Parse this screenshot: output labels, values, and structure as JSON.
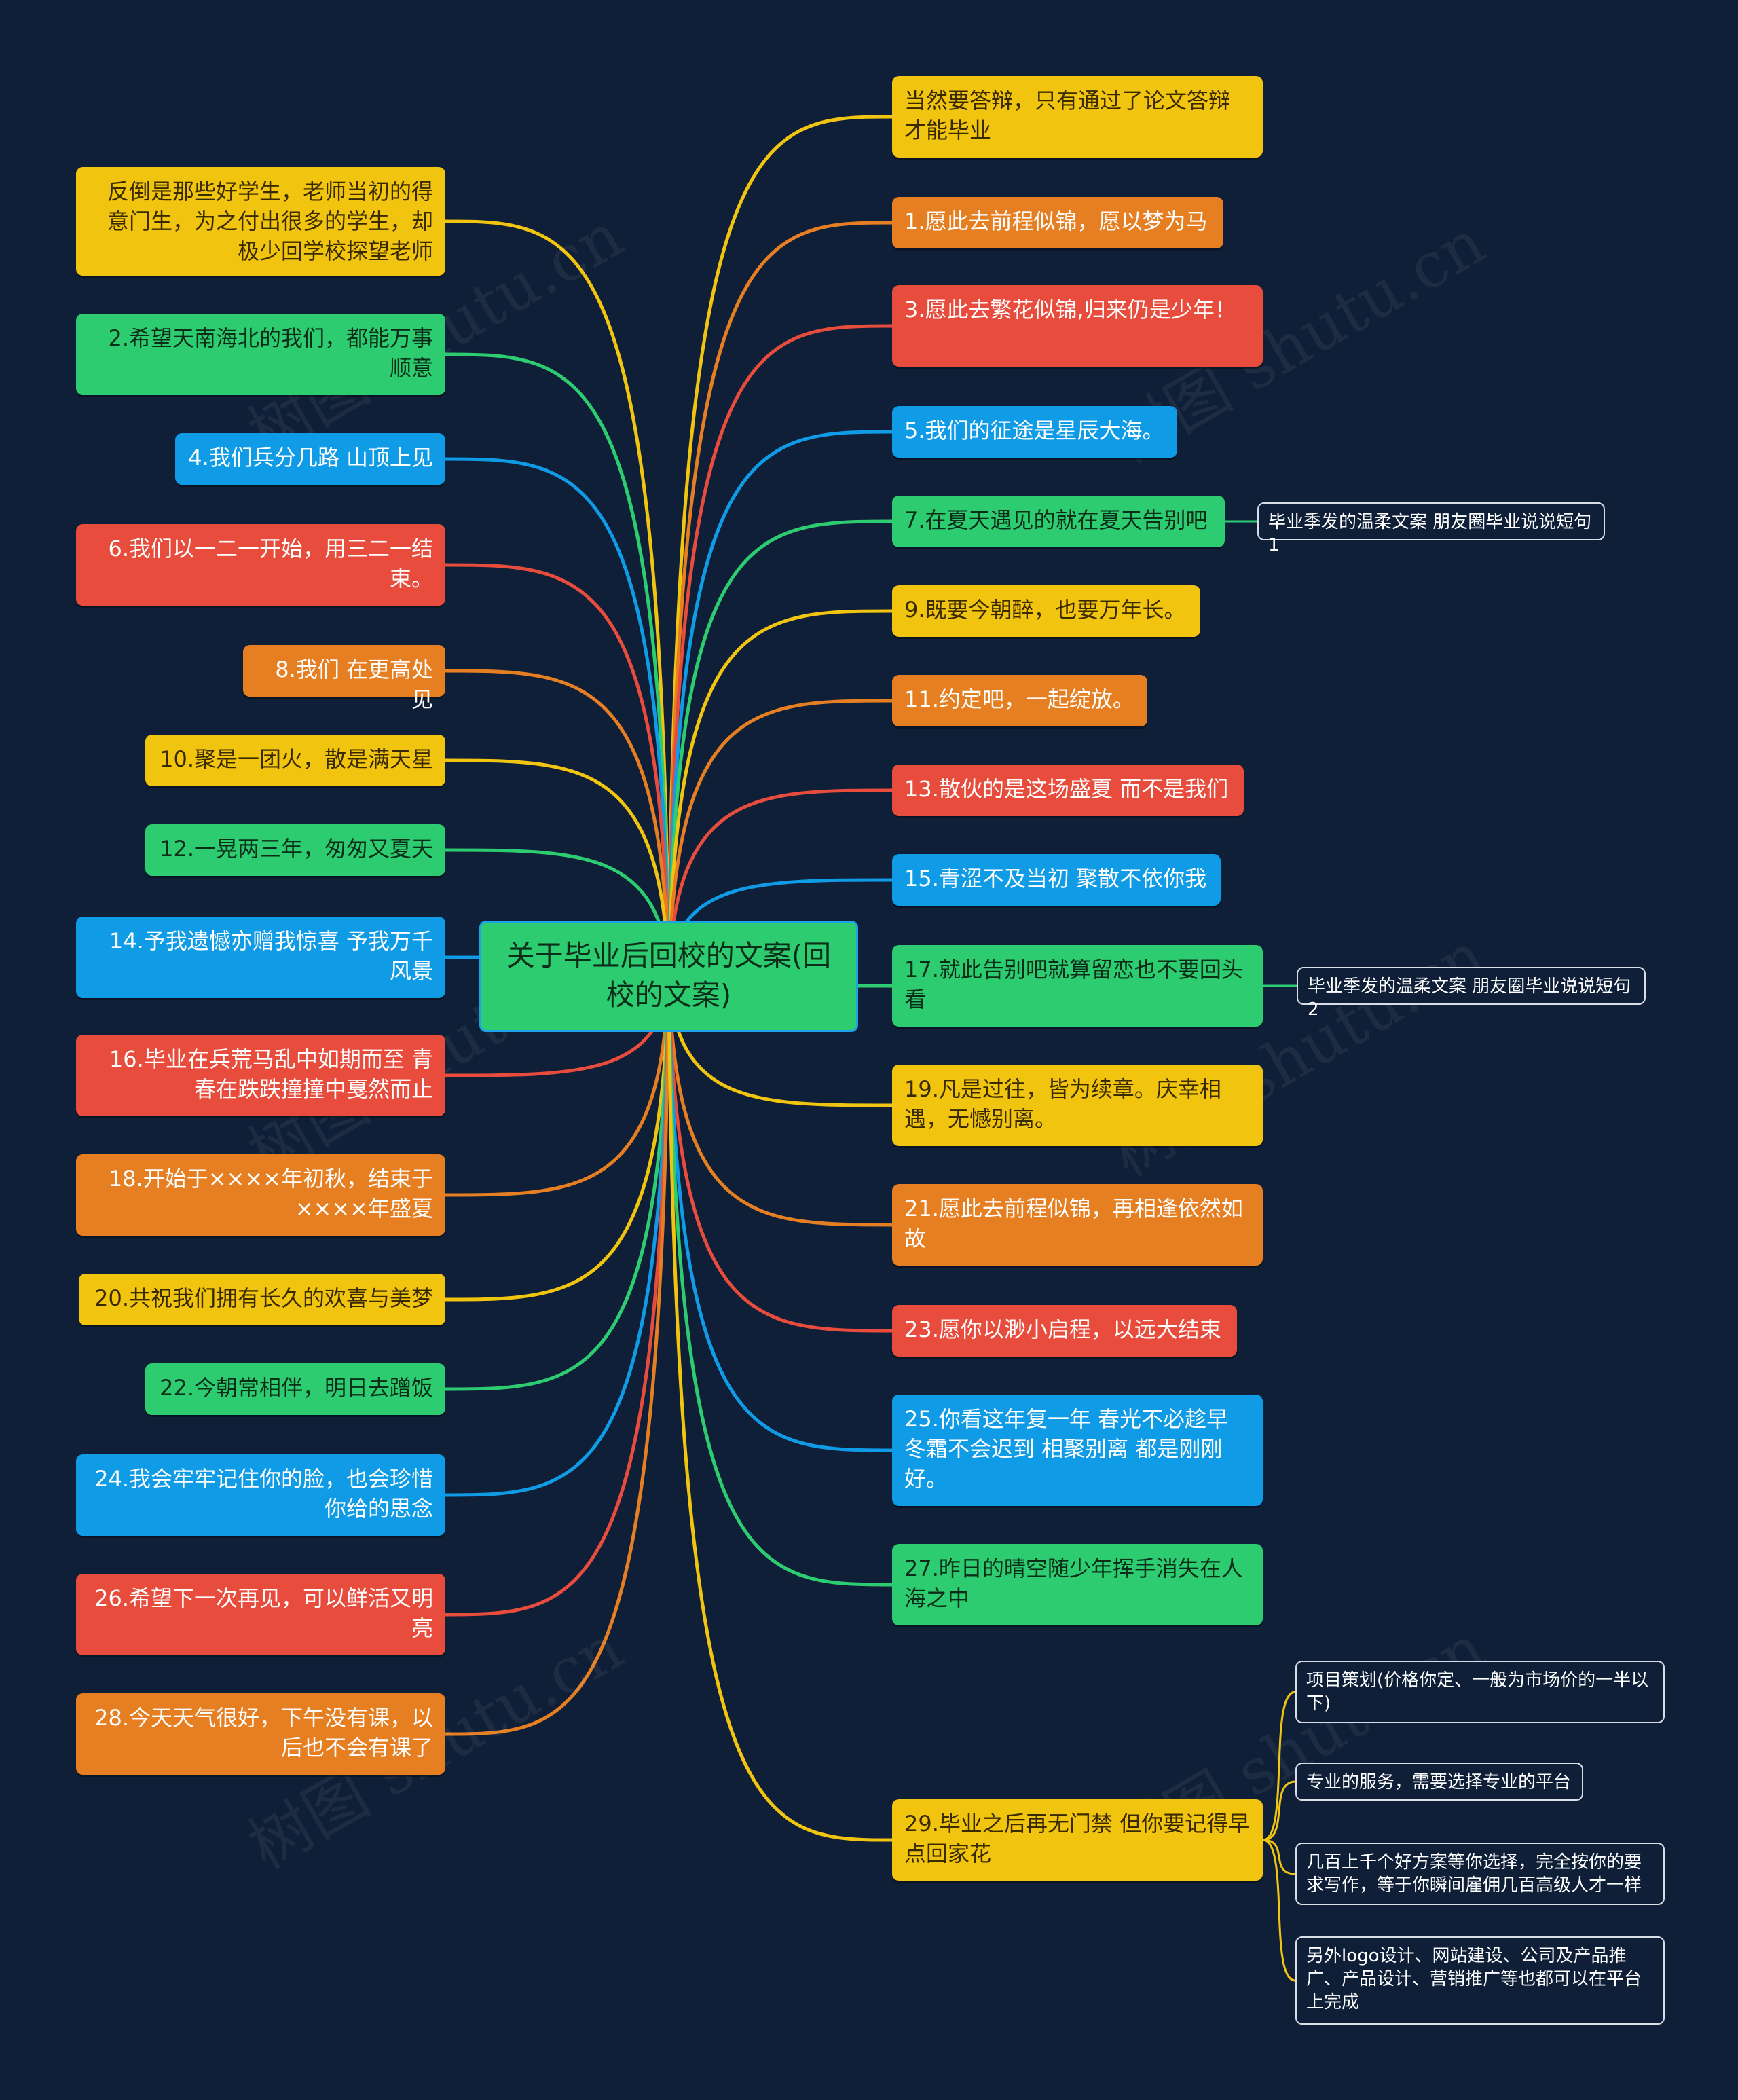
{
  "central_topic": "关于毕业后回校的文案(回校的文案)",
  "watermark_text": "树图 shutu.cn",
  "colors": {
    "background": "#0f1f38",
    "yellow": "#f1c40f",
    "orange": "#e67e22",
    "red": "#e74c3c",
    "green": "#2ecc71",
    "blue": "#0f9be6"
  },
  "left_branches": [
    {
      "text": "反倒是那些好学生，老师当初的得意门生，为之付出很多的学生，却极少回学校探望老师",
      "color": "yellow"
    },
    {
      "text": "2.希望天南海北的我们，都能万事顺意",
      "color": "green"
    },
    {
      "text": "4.我们兵分几路 山顶上见",
      "color": "blue"
    },
    {
      "text": "6.我们以一二一开始，用三二一结束。",
      "color": "red"
    },
    {
      "text": "8.我们 在更高处见",
      "color": "orange"
    },
    {
      "text": "10.聚是一团火，散是满天星",
      "color": "yellow"
    },
    {
      "text": "12.一晃两三年，匆匆又夏天",
      "color": "green"
    },
    {
      "text": "14.予我遗憾亦赠我惊喜 予我万千风景",
      "color": "blue"
    },
    {
      "text": "16.毕业在兵荒马乱中如期而至 青春在跌跌撞撞中戛然而止",
      "color": "red"
    },
    {
      "text": "18.开始于××××年初秋，结束于××××年盛夏",
      "color": "orange"
    },
    {
      "text": "20.共祝我们拥有长久的欢喜与美梦",
      "color": "yellow"
    },
    {
      "text": "22.今朝常相伴，明日去蹭饭",
      "color": "green"
    },
    {
      "text": "24.我会牢牢记住你的脸，也会珍惜你给的思念",
      "color": "blue"
    },
    {
      "text": "26.希望下一次再见，可以鲜活又明亮",
      "color": "red"
    },
    {
      "text": "28.今天天气很好，下午没有课，以后也不会有课了",
      "color": "orange"
    }
  ],
  "right_branches": [
    {
      "text": "当然要答辩，只有通过了论文答辩才能毕业",
      "color": "yellow"
    },
    {
      "text": "1.愿此去前程似锦，愿以梦为马",
      "color": "orange"
    },
    {
      "text": "3.愿此去繁花似锦,归来仍是少年！",
      "color": "red"
    },
    {
      "text": "5.我们的征途是星辰大海。",
      "color": "blue"
    },
    {
      "text": "7.在夏天遇见的就在夏天告别吧",
      "color": "green",
      "children": [
        "毕业季发的温柔文案 朋友圈毕业说说短句1"
      ]
    },
    {
      "text": "9.既要今朝醉，也要万年长。",
      "color": "yellow"
    },
    {
      "text": "11.约定吧，一起绽放。",
      "color": "orange"
    },
    {
      "text": "13.散伙的是这场盛夏 而不是我们",
      "color": "red"
    },
    {
      "text": "15.青涩不及当初 聚散不依你我",
      "color": "blue"
    },
    {
      "text": "17.就此告别吧就算留恋也不要回头看",
      "color": "green",
      "children": [
        "毕业季发的温柔文案 朋友圈毕业说说短句2"
      ]
    },
    {
      "text": "19.凡是过往，皆为续章。庆幸相遇，无憾别离。",
      "color": "yellow"
    },
    {
      "text": "21.愿此去前程似锦，再相逢依然如故",
      "color": "orange"
    },
    {
      "text": "23.愿你以渺小启程，以远大结束",
      "color": "red"
    },
    {
      "text": "25.你看这年复一年 春光不必趁早 冬霜不会迟到 相聚别离 都是刚刚好。",
      "color": "blue"
    },
    {
      "text": "27.昨日的晴空随少年挥手消失在人海之中",
      "color": "green"
    },
    {
      "text": "29.毕业之后再无门禁 但你要记得早点回家花",
      "color": "yellow",
      "children": [
        "项目策划(价格你定、一般为市场价的一半以下)",
        "专业的服务，需要选择专业的平台",
        "几百上千个好方案等你选择，完全按你的要求写作，等于你瞬间雇佣几百高级人才一样",
        "另外logo设计、网站建设、公司及产品推广、产品设计、营销推广等也都可以在平台上完成"
      ]
    }
  ]
}
